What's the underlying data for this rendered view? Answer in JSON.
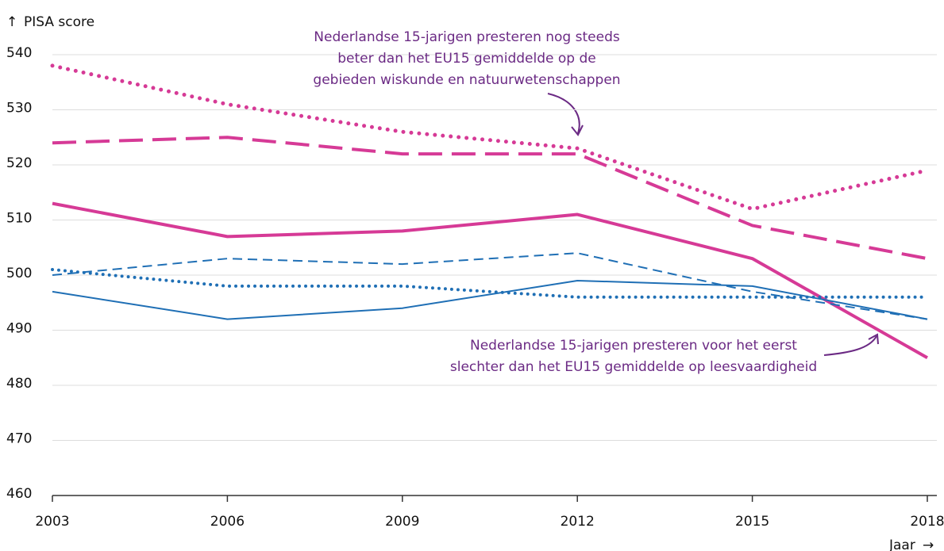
{
  "chart_data": {
    "type": "line",
    "y_label": "PISA score",
    "x_label": "Jaar",
    "x": [
      2003,
      2006,
      2009,
      2012,
      2015,
      2018
    ],
    "xlim": [
      2003,
      2018
    ],
    "xticks": [
      2003,
      2006,
      2009,
      2012,
      2015,
      2018
    ],
    "ylim": [
      460,
      540
    ],
    "yticks": [
      460,
      470,
      480,
      490,
      500,
      510,
      520,
      530,
      540
    ],
    "grid": true,
    "series": [
      {
        "color": "#d63a96",
        "style": "dotted",
        "width": 5,
        "values": [
          538,
          531,
          526,
          523,
          512,
          519
        ]
      },
      {
        "color": "#d63a96",
        "style": "dashed",
        "width": 4,
        "values": [
          524,
          525,
          522,
          522,
          509,
          503
        ]
      },
      {
        "color": "#d63a96",
        "style": "solid",
        "width": 4,
        "values": [
          513,
          507,
          508,
          511,
          503,
          485
        ]
      },
      {
        "color": "#1f6fb5",
        "style": "dashed",
        "width": 2,
        "values": [
          500,
          503,
          502,
          504,
          497,
          492
        ]
      },
      {
        "color": "#1f6fb5",
        "style": "dotted",
        "width": 4,
        "values": [
          501,
          498,
          498,
          496,
          496,
          496
        ]
      },
      {
        "color": "#1f6fb5",
        "style": "solid",
        "width": 2,
        "values": [
          497,
          492,
          494,
          499,
          498,
          492
        ]
      }
    ],
    "annotations": [
      {
        "lines": [
          "Nederlandse 15-jarigen presteren nog steeds",
          "beter dan het EU15 gemiddelde op de",
          "gebieden wiskunde en natuurwetenschappen"
        ]
      },
      {
        "lines": [
          "Nederlandse 15-jarigen presteren voor het eerst",
          "slechter dan het EU15 gemiddelde op leesvaardigheid"
        ]
      }
    ]
  }
}
